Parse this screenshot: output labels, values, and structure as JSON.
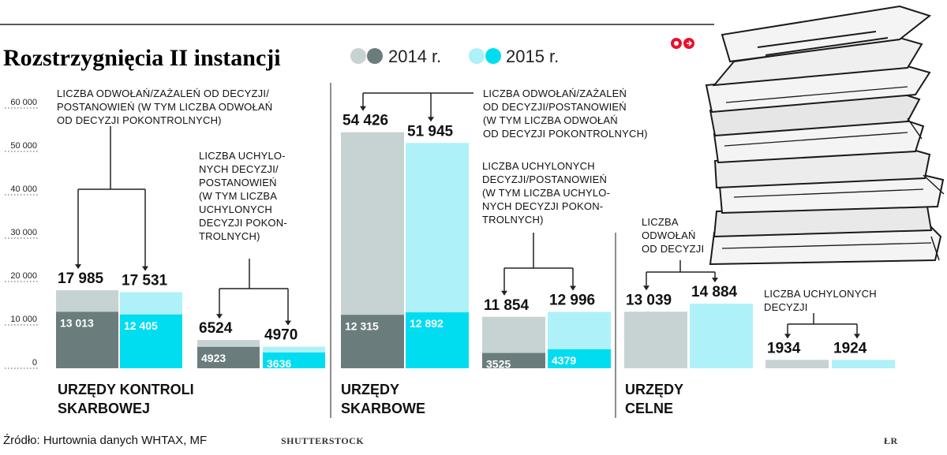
{
  "title": "Rozstrzygnięcia II instancji",
  "legend": [
    {
      "label": "2014 r.",
      "light": "#c7d3d3",
      "dark": "#6b7c7c"
    },
    {
      "label": "2015 r.",
      "light": "#aef1f8",
      "dark": "#00ddf1"
    }
  ],
  "y_ticks": [
    "60 000",
    "50 000",
    "40 000",
    "30 000",
    "20 000",
    "10 000",
    "0"
  ],
  "source": "Źródło: Hurtownia danych WHTAX, MF",
  "credit": "SHUTTERSTOCK",
  "signature": "ŁR",
  "chart_data": {
    "type": "bar",
    "stacked": true,
    "title": "Rozstrzygnięcia II instancji",
    "ylim": [
      0,
      60000
    ],
    "series_labels": [
      "2014 r.",
      "2015 r."
    ],
    "groups": [
      {
        "label": [
          "URZĘDY KONTROLI",
          "SKARBOWEJ"
        ],
        "subgroups": [
          {
            "annotation": [
              "LICZBA ODWOŁAŃ/ZAŻALEŃ OD DECYZJI/",
              "POSTANOWIEŃ (W TYM LICZBA ODWOŁAŃ",
              "OD DECYZJI POKONTROLNYCH)"
            ],
            "bars": [
              {
                "year": "2014 r.",
                "total": 17985,
                "total_label": "17 985",
                "inner": 13013,
                "inner_label": "13 013"
              },
              {
                "year": "2015 r.",
                "total": 17531,
                "total_label": "17 531",
                "inner": 12405,
                "inner_label": "12 405"
              }
            ]
          },
          {
            "annotation": [
              "LICZBA UCHYLO-",
              "NYCH DECYZJI/",
              "POSTANOWIEŃ",
              "(W TYM LICZBA",
              "UCHYLONYCH",
              "DECYZJI POKON-",
              "TROLNYCH)"
            ],
            "bars": [
              {
                "year": "2014 r.",
                "total": 6524,
                "total_label": "6524",
                "inner": 4923,
                "inner_label": "4923"
              },
              {
                "year": "2015 r.",
                "total": 4970,
                "total_label": "4970",
                "inner": 3636,
                "inner_label": "3636"
              }
            ]
          }
        ]
      },
      {
        "label": [
          "URZĘDY",
          "SKARBOWE"
        ],
        "subgroups": [
          {
            "annotation": [
              "LICZBA ODWOŁAŃ/ZAŻALEŃ",
              "OD DECYZJI/POSTANOWIEŃ",
              "(W TYM LICZBA ODWOŁAŃ",
              "OD DECYZJI POKONTROLNYCH)"
            ],
            "bars": [
              {
                "year": "2014 r.",
                "total": 54426,
                "total_label": "54 426",
                "inner": 12315,
                "inner_label": "12 315"
              },
              {
                "year": "2015 r.",
                "total": 51945,
                "total_label": "51 945",
                "inner": 12892,
                "inner_label": "12 892"
              }
            ]
          },
          {
            "annotation": [
              "LICZBA UCHYLONYCH",
              "DECYZJI/POSTANOWIEŃ",
              "(W TYM LICZBA UCHYLO-",
              "NYCH DECYZJI POKON-",
              "TROLNYCH)"
            ],
            "bars": [
              {
                "year": "2014 r.",
                "total": 11854,
                "total_label": "11 854",
                "inner": 3525,
                "inner_label": "3525"
              },
              {
                "year": "2015 r.",
                "total": 12996,
                "total_label": "12 996",
                "inner": 4379,
                "inner_label": "4379"
              }
            ]
          }
        ]
      },
      {
        "label": [
          "URZĘDY",
          "CELNE"
        ],
        "subgroups": [
          {
            "annotation": [
              "LICZBA",
              "ODWOŁAŃ",
              "OD DECYZJI"
            ],
            "bars": [
              {
                "year": "2014 r.",
                "total": 13039,
                "total_label": "13 039",
                "inner": null,
                "inner_label": null
              },
              {
                "year": "2015 r.",
                "total": 14884,
                "total_label": "14 884",
                "inner": null,
                "inner_label": null
              }
            ]
          },
          {
            "annotation": [
              "LICZBA UCHYLONYCH",
              "DECYZJI"
            ],
            "bars": [
              {
                "year": "2014 r.",
                "total": 1934,
                "total_label": "1934",
                "inner": null,
                "inner_label": null
              },
              {
                "year": "2015 r.",
                "total": 1924,
                "total_label": "1924",
                "inner": null,
                "inner_label": null
              }
            ]
          }
        ]
      }
    ]
  }
}
